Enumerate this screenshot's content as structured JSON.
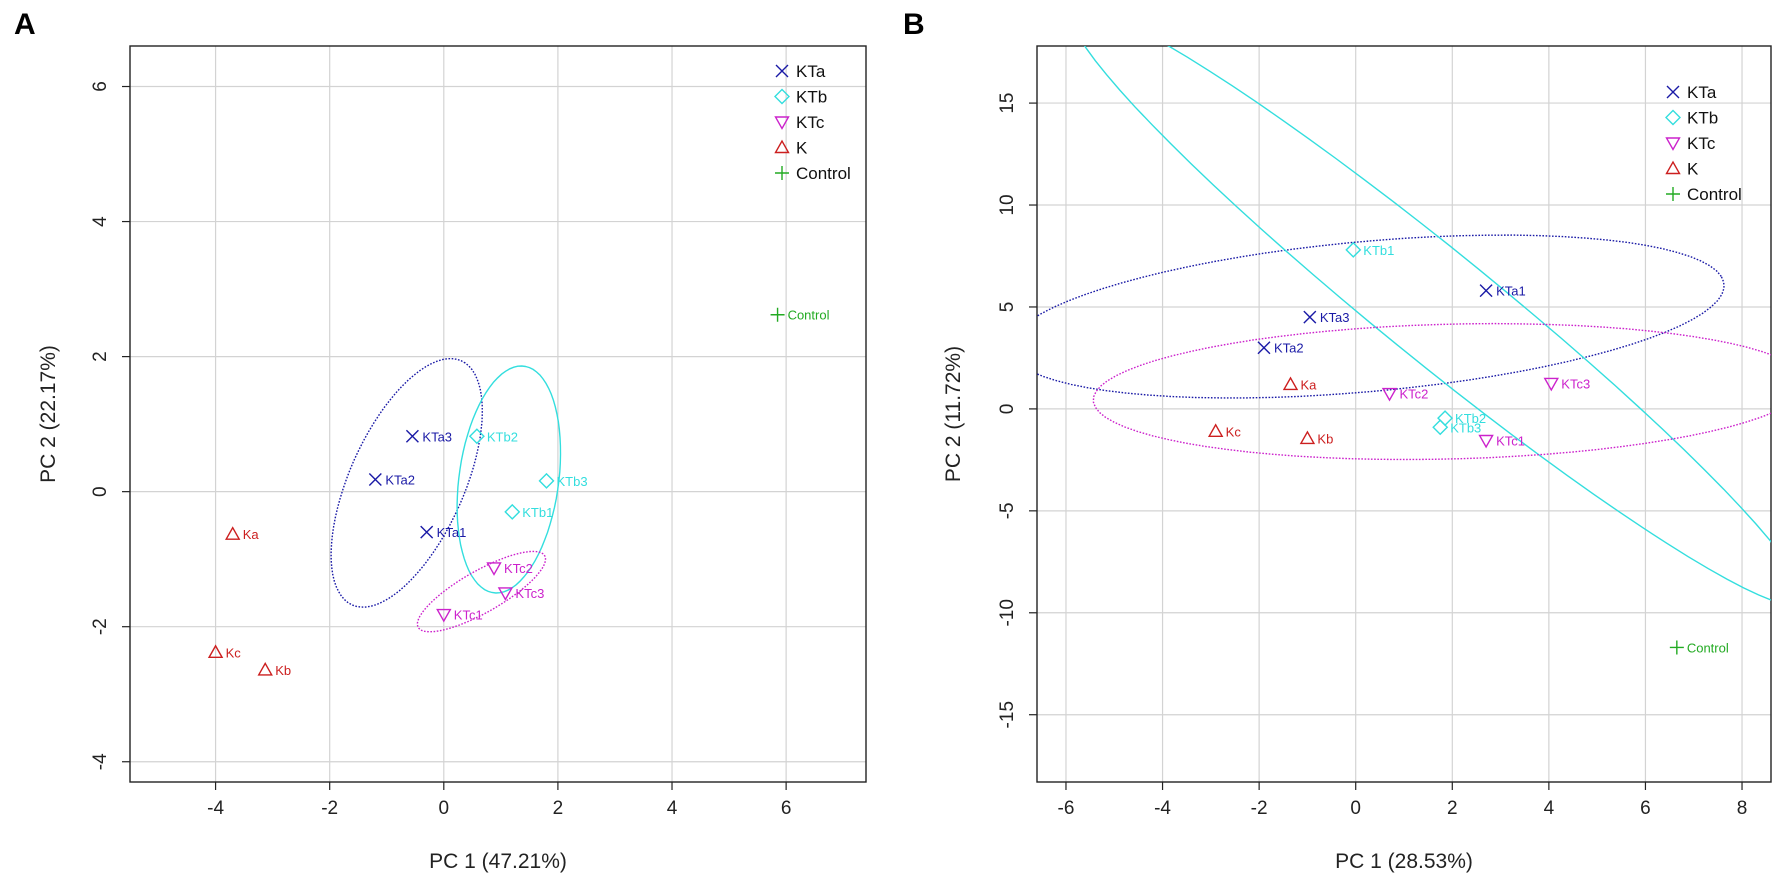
{
  "chart_data": [
    {
      "type": "scatter",
      "panel_label": "A",
      "title": "",
      "xlabel": "PC 1 (47.21%)",
      "ylabel": "PC 2 (22.17%)",
      "xlim": [
        -5.5,
        7.4
      ],
      "ylim": [
        -4.3,
        6.6
      ],
      "xticks": [
        -4,
        -2,
        0,
        2,
        4,
        6
      ],
      "yticks": [
        -4,
        -2,
        0,
        2,
        4,
        6
      ],
      "xtick_labels": [
        "-4",
        "-2",
        "0",
        "2",
        "4",
        "6"
      ],
      "ytick_labels": [
        "-4",
        "-2",
        "0",
        "2",
        "4",
        "6"
      ],
      "grid": true,
      "legend": {
        "position": "top-right",
        "entries": [
          {
            "label": "KTa",
            "group": "KTa"
          },
          {
            "label": "KTb",
            "group": "KTb"
          },
          {
            "label": "KTc",
            "group": "KTc"
          },
          {
            "label": "K",
            "group": "K"
          },
          {
            "label": "Control",
            "group": "Control"
          }
        ]
      },
      "groups": {
        "KTa": {
          "color": "#1a1aa6",
          "marker": "x"
        },
        "KTb": {
          "color": "#33dede",
          "marker": "diamond"
        },
        "KTc": {
          "color": "#cc22cc",
          "marker": "triangle-down"
        },
        "K": {
          "color": "#cc1f1f",
          "marker": "triangle-up"
        },
        "Control": {
          "color": "#22aa22",
          "marker": "plus"
        }
      },
      "points": [
        {
          "label": "KTa1",
          "group": "KTa",
          "x": -0.3,
          "y": -0.6
        },
        {
          "label": "KTa2",
          "group": "KTa",
          "x": -1.2,
          "y": 0.18
        },
        {
          "label": "KTa3",
          "group": "KTa",
          "x": -0.55,
          "y": 0.82
        },
        {
          "label": "KTb1",
          "group": "KTb",
          "x": 1.2,
          "y": -0.3
        },
        {
          "label": "KTb2",
          "group": "KTb",
          "x": 0.58,
          "y": 0.82
        },
        {
          "label": "KTb3",
          "group": "KTb",
          "x": 1.8,
          "y": 0.16
        },
        {
          "label": "KTc1",
          "group": "KTc",
          "x": 0.0,
          "y": -1.82
        },
        {
          "label": "KTc2",
          "group": "KTc",
          "x": 0.88,
          "y": -1.13
        },
        {
          "label": "KTc3",
          "group": "KTc",
          "x": 1.08,
          "y": -1.5
        },
        {
          "label": "Ka",
          "group": "K",
          "x": -3.7,
          "y": -0.63
        },
        {
          "label": "Kb",
          "group": "K",
          "x": -3.13,
          "y": -2.64
        },
        {
          "label": "Kc",
          "group": "K",
          "x": -4.0,
          "y": -2.38
        },
        {
          "label": "Control",
          "group": "Control",
          "x": 5.85,
          "y": 2.62
        }
      ],
      "ellipses": [
        {
          "group": "KTa",
          "cx": -0.65,
          "cy": 0.13,
          "rx": 2.05,
          "ry": 0.97,
          "angle_deg": 60
        },
        {
          "group": "KTb",
          "cx": 1.14,
          "cy": 0.18,
          "rx": 1.7,
          "ry": 0.87,
          "angle_deg": 80
        },
        {
          "group": "KTc",
          "cx": 0.66,
          "cy": -1.48,
          "rx": 1.23,
          "ry": 0.32,
          "angle_deg": 25
        }
      ]
    },
    {
      "type": "scatter",
      "panel_label": "B",
      "title": "",
      "xlabel": "PC 1 (28.53%)",
      "ylabel": "PC 2 (11.72%)",
      "xlim": [
        -6.6,
        8.6
      ],
      "ylim": [
        -18.3,
        17.8
      ],
      "xticks": [
        -6,
        -4,
        -2,
        0,
        2,
        4,
        6,
        8
      ],
      "yticks": [
        -15,
        -10,
        -5,
        0,
        5,
        10,
        15
      ],
      "xtick_labels": [
        "-6",
        "-4",
        "-2",
        "0",
        "2",
        "4",
        "6",
        "8"
      ],
      "ytick_labels": [
        "-15",
        "-10",
        "-5",
        "0",
        "5",
        "10",
        "15"
      ],
      "grid": true,
      "legend": {
        "position": "top-right",
        "entries": [
          {
            "label": "KTa",
            "group": "KTa"
          },
          {
            "label": "KTb",
            "group": "KTb"
          },
          {
            "label": "KTc",
            "group": "KTc"
          },
          {
            "label": "K",
            "group": "K"
          },
          {
            "label": "Control",
            "group": "Control"
          }
        ]
      },
      "groups": {
        "KTa": {
          "color": "#1a1aa6",
          "marker": "x"
        },
        "KTb": {
          "color": "#33dede",
          "marker": "diamond"
        },
        "KTc": {
          "color": "#cc22cc",
          "marker": "triangle-down"
        },
        "K": {
          "color": "#cc1f1f",
          "marker": "triangle-up"
        },
        "Control": {
          "color": "#22aa22",
          "marker": "plus"
        }
      },
      "points": [
        {
          "label": "KTa1",
          "group": "KTa",
          "x": 2.7,
          "y": 5.8
        },
        {
          "label": "KTa2",
          "group": "KTa",
          "x": -1.9,
          "y": 3.0
        },
        {
          "label": "KTa3",
          "group": "KTa",
          "x": -0.95,
          "y": 4.5
        },
        {
          "label": "KTb1",
          "group": "KTb",
          "x": -0.05,
          "y": 7.8
        },
        {
          "label": "KTb2",
          "group": "KTb",
          "x": 1.85,
          "y": -0.45
        },
        {
          "label": "KTb3",
          "group": "KTb",
          "x": 1.75,
          "y": -0.9
        },
        {
          "label": "KTc1",
          "group": "KTc",
          "x": 2.7,
          "y": -1.55
        },
        {
          "label": "KTc2",
          "group": "KTc",
          "x": 0.7,
          "y": 0.75
        },
        {
          "label": "KTc3",
          "group": "KTc",
          "x": 4.05,
          "y": 1.25
        },
        {
          "label": "Ka",
          "group": "K",
          "x": -1.35,
          "y": 1.2
        },
        {
          "label": "Kb",
          "group": "K",
          "x": -1.0,
          "y": -1.45
        },
        {
          "label": "Kc",
          "group": "K",
          "x": -2.9,
          "y": -1.1
        },
        {
          "label": "Control",
          "group": "Control",
          "x": 6.65,
          "y": -11.7
        }
      ],
      "ellipses": [
        {
          "group": "KTa",
          "cx": 0.23,
          "cy": 4.53,
          "rx": 7.6,
          "ry": 3.6,
          "angle_deg": 15
        },
        {
          "group": "KTb",
          "cx": 1.7,
          "cy": 5.0,
          "rx": 16.4,
          "ry": 1.6,
          "angle_deg": -63
        },
        {
          "group": "KTc",
          "cx": 1.95,
          "cy": 0.85,
          "rx": 7.4,
          "ry": 3.3,
          "angle_deg": 4
        }
      ]
    }
  ]
}
